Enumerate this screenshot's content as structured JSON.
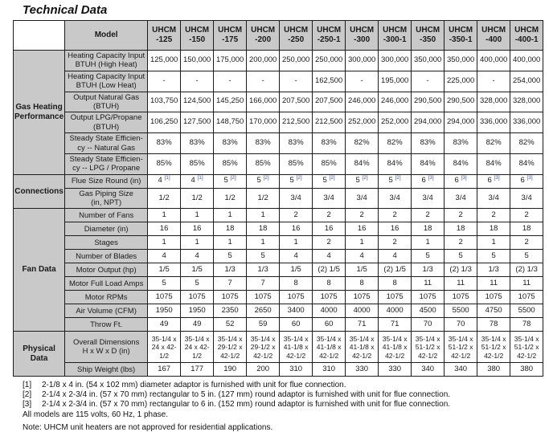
{
  "title": "Technical Data",
  "colors": {
    "header_bg": "#c9c9c9",
    "border": "#1c1c1c",
    "superscript_blue": "#44549b"
  },
  "table": {
    "corner_label": "Model",
    "models": [
      "UHCM\n-125",
      "UHCM\n-150",
      "UHCM\n-175",
      "UHCM\n-200",
      "UHCM\n-250",
      "UHCM\n-250-1",
      "UHCM\n-300",
      "UHCM\n-300-1",
      "UHCM\n-350",
      "UHCM\n-350-1",
      "UHCM\n-400",
      "UHCM\n-400-1"
    ],
    "groups": [
      {
        "label": "Gas Heating\nPerformance",
        "rows": [
          {
            "label": "Heating Capacity Input\nBTUH (High Heat)",
            "tall": true,
            "values": [
              "125,000",
              "150,000",
              "175,000",
              "200,000",
              "250,000",
              "250,000",
              "300,000",
              "300,000",
              "350,000",
              "350,000",
              "400,000",
              "400,000"
            ]
          },
          {
            "label": "Heating Capacity Input\nBTUH (Low Heat)",
            "tall": true,
            "values": [
              "-",
              "-",
              "-",
              "-",
              "-",
              "162,500",
              "-",
              "195,000",
              "-",
              "225,000",
              "-",
              "254,000"
            ]
          },
          {
            "label": "Output Natural Gas\n(BTUH)",
            "tall": true,
            "values": [
              "103,750",
              "124,500",
              "145,250",
              "166,000",
              "207,500",
              "207,500",
              "246,000",
              "246,000",
              "290,500",
              "290,500",
              "328,000",
              "328,000"
            ]
          },
          {
            "label": "Output LPG/Propane\n(BTUH)",
            "tall": true,
            "values": [
              "106,250",
              "127,500",
              "148,750",
              "170,000",
              "212,500",
              "212,500",
              "252,000",
              "252,000",
              "294,000",
              "294,000",
              "336,000",
              "336,000"
            ]
          },
          {
            "label": "Steady State Efficien-\ncy -- Natural Gas",
            "tall": true,
            "values": [
              "83%",
              "83%",
              "83%",
              "83%",
              "83%",
              "83%",
              "82%",
              "82%",
              "83%",
              "83%",
              "82%",
              "82%"
            ]
          },
          {
            "label": "Steady State Efficien-\ncy -- LPG / Propane",
            "tall": true,
            "values": [
              "85%",
              "85%",
              "85%",
              "85%",
              "85%",
              "85%",
              "84%",
              "84%",
              "84%",
              "84%",
              "84%",
              "84%"
            ]
          }
        ]
      },
      {
        "label": "Connections",
        "rows": [
          {
            "label": "Flue Size Round (in)",
            "values": [
              "4 [1]",
              "4 [1]",
              "5 [2]",
              "5 [2]",
              "5 [2]",
              "5 [2]",
              "5 [2]",
              "5 [2]",
              "6 [3]",
              "6 [3]",
              "6 [3]",
              "6 [3]"
            ]
          },
          {
            "label": "Gas Piping Size\n(in, NPT)",
            "tall": true,
            "values": [
              "1/2",
              "1/2",
              "1/2",
              "1/2",
              "3/4",
              "3/4",
              "3/4",
              "3/4",
              "3/4",
              "3/4",
              "3/4",
              "3/4"
            ]
          }
        ]
      },
      {
        "label": "Fan Data",
        "rows": [
          {
            "label": "Number of Fans",
            "values": [
              "1",
              "1",
              "1",
              "1",
              "2",
              "2",
              "2",
              "2",
              "2",
              "2",
              "2",
              "2"
            ]
          },
          {
            "label": "Diameter (in)",
            "values": [
              "16",
              "16",
              "18",
              "18",
              "16",
              "16",
              "16",
              "16",
              "18",
              "18",
              "18",
              "18"
            ]
          },
          {
            "label": "Stages",
            "values": [
              "1",
              "1",
              "1",
              "1",
              "1",
              "2",
              "1",
              "2",
              "1",
              "2",
              "1",
              "2"
            ]
          },
          {
            "label": "Number of Blades",
            "values": [
              "4",
              "4",
              "5",
              "5",
              "4",
              "4",
              "4",
              "4",
              "5",
              "5",
              "5",
              "5"
            ]
          },
          {
            "label": "Motor Output (hp)",
            "values": [
              "1/5",
              "1/5",
              "1/3",
              "1/3",
              "1/5",
              "(2) 1/5",
              "1/5",
              "(2) 1/5",
              "1/3",
              "(2) 1/3",
              "1/3",
              "(2) 1/3"
            ]
          },
          {
            "label": "Motor Full Load Amps",
            "values": [
              "5",
              "5",
              "7",
              "7",
              "8",
              "8",
              "8",
              "8",
              "11",
              "11",
              "11",
              "11"
            ]
          },
          {
            "label": "Motor RPMs",
            "values": [
              "1075",
              "1075",
              "1075",
              "1075",
              "1075",
              "1075",
              "1075",
              "1075",
              "1075",
              "1075",
              "1075",
              "1075"
            ]
          },
          {
            "label": "Air Volume (CFM)",
            "values": [
              "1950",
              "1950",
              "2350",
              "2650",
              "3400",
              "4000",
              "4000",
              "4000",
              "4500",
              "5500",
              "4750",
              "5500"
            ]
          },
          {
            "label": "Throw Ft.",
            "values": [
              "49",
              "49",
              "52",
              "59",
              "60",
              "60",
              "71",
              "71",
              "70",
              "70",
              "78",
              "78"
            ]
          }
        ]
      },
      {
        "label": "Physical\nData",
        "rows": [
          {
            "label": "Overall Dimensions\nH x W x D (in)",
            "dims": true,
            "values": [
              "35-1/4 x 24 x 42-1/2",
              "35-1/4 x 24 x 42-1/2",
              "35-1/4 x 29-1/2 x 42-1/2",
              "35-1/4 x 29-1/2 x 42-1/2",
              "35-1/4 x 41-1/8 x 42-1/2",
              "35-1/4 x 41-1/8 x 42-1/2",
              "35-1/4 x 41-1/8 x 42-1/2",
              "35-1/4 x 41-1/8 x 42-1/2",
              "35-1/4 x 51-1/2 x 42-1/2",
              "35-1/4 x 51-1/2 x 42-1/2",
              "35-1/4 x 51-1/2 x 42-1/2",
              "35-1/4 x 51-1/2 x 42-1/2"
            ]
          },
          {
            "label": "Ship Weight (lbs)",
            "values": [
              "167",
              "177",
              "190",
              "200",
              "310",
              "310",
              "330",
              "330",
              "340",
              "340",
              "380",
              "380"
            ]
          }
        ]
      }
    ]
  },
  "footnotes": [
    {
      "ref": "[1]",
      "text": "2-1/8 x 4 in. (54 x 102 mm) diameter adaptor is furnished with unit for flue connection."
    },
    {
      "ref": "[2]",
      "text": "2-1/4 x 2-3/4 in. (57 x 70 mm) rectangular to 5 in. (127 mm) round adaptor is furnished with unit for flue connection."
    },
    {
      "ref": "[3]",
      "text": "2-1/4 x 2-3/4 in. (57 x 70 mm) rectangular to 6 in. (152 mm) round adaptor is furnished with unit for flue connection."
    }
  ],
  "notes": [
    "All models are 115 volts, 60 Hz, 1 phase.",
    "Note:  UHCM unit heaters are not approved for residential applications."
  ]
}
